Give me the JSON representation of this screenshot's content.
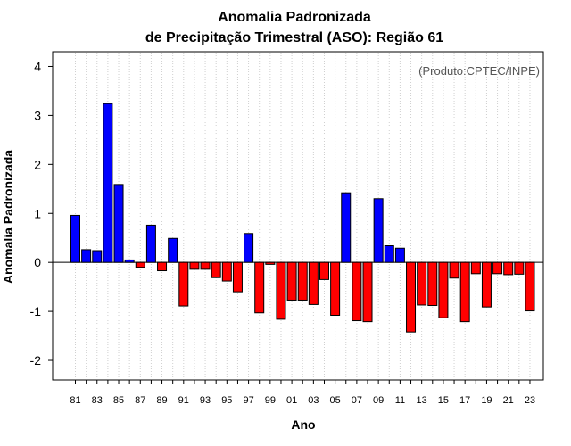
{
  "chart_data": {
    "type": "bar",
    "title_line1": "Anomalia Padronizada",
    "title_line2": "de Precipitação Trimestral (ASO): Região 61",
    "xlabel": "Ano",
    "ylabel": "Anomalia Padronizada",
    "credit": "(Produto:CPTEC/INPE)",
    "ylim": [
      -2.4,
      4.3
    ],
    "yticks": [
      -2,
      -1,
      0,
      1,
      2,
      3,
      4
    ],
    "xtick_labels": [
      "81",
      "83",
      "85",
      "87",
      "89",
      "91",
      "93",
      "95",
      "97",
      "99",
      "01",
      "03",
      "05",
      "07",
      "09",
      "11",
      "13",
      "15",
      "17",
      "19",
      "21",
      "23"
    ],
    "categories": [
      "81",
      "82",
      "83",
      "84",
      "85",
      "86",
      "87",
      "88",
      "89",
      "90",
      "91",
      "92",
      "93",
      "94",
      "95",
      "96",
      "97",
      "98",
      "99",
      "00",
      "01",
      "02",
      "03",
      "04",
      "05",
      "06",
      "07",
      "08",
      "09",
      "10",
      "11",
      "12",
      "13",
      "14",
      "15",
      "16",
      "17",
      "18",
      "19",
      "20",
      "21",
      "22",
      "23"
    ],
    "values": [
      0.96,
      0.26,
      0.24,
      3.24,
      1.59,
      0.05,
      -0.1,
      0.76,
      -0.17,
      0.49,
      -0.89,
      -0.14,
      -0.14,
      -0.31,
      -0.38,
      -0.6,
      0.59,
      -1.03,
      -0.04,
      -1.16,
      -0.77,
      -0.77,
      -0.86,
      -0.35,
      -1.08,
      1.42,
      -1.19,
      -1.21,
      1.3,
      0.34,
      0.29,
      -1.42,
      -0.87,
      -0.88,
      -1.13,
      -0.32,
      -1.21,
      -0.23,
      -0.91,
      -0.23,
      -0.25,
      -0.24,
      -0.99
    ],
    "positive_color": "#0000ff",
    "negative_color": "#ff0000",
    "grid": "vertical-dotted"
  }
}
